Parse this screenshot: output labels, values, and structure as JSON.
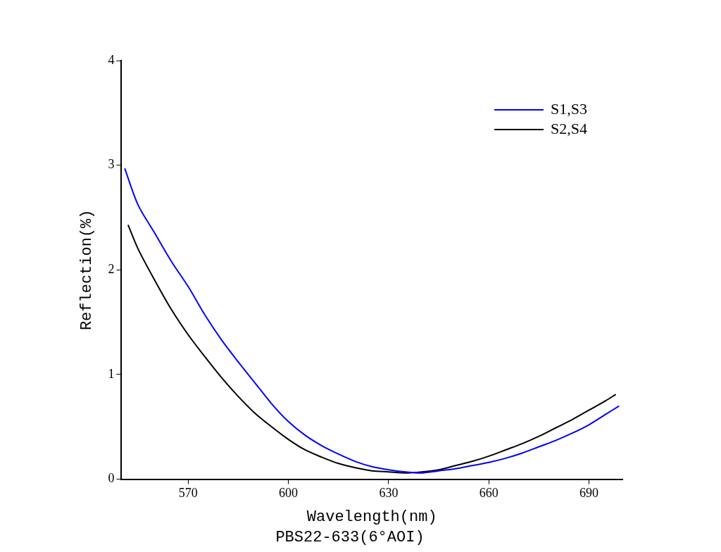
{
  "chart_data": {
    "type": "line",
    "title": "PBS22-633(6°AOI)",
    "x_label": "Wavelength(nm)",
    "y_label": "Reflection(%)",
    "xlim": [
      550,
      700
    ],
    "xticks": [
      570,
      600,
      630,
      660,
      690
    ],
    "ylim": [
      0,
      4
    ],
    "yticks": [
      0,
      1,
      2,
      3,
      4
    ],
    "grid": false,
    "legend": "upper right",
    "series": [
      {
        "name": "S1,S3",
        "color": "#0000ff",
        "x": [
          551,
          555,
          560,
          565,
          570,
          575,
          580,
          585,
          590,
          595,
          600,
          605,
          610,
          615,
          620,
          625,
          630,
          635,
          640,
          645,
          650,
          655,
          660,
          665,
          670,
          675,
          680,
          685,
          690,
          695,
          699
        ],
        "values": [
          2.97,
          2.62,
          2.35,
          2.08,
          1.84,
          1.57,
          1.33,
          1.12,
          0.92,
          0.72,
          0.55,
          0.42,
          0.32,
          0.24,
          0.17,
          0.12,
          0.09,
          0.07,
          0.06,
          0.08,
          0.1,
          0.13,
          0.16,
          0.2,
          0.25,
          0.31,
          0.37,
          0.44,
          0.52,
          0.62,
          0.7
        ]
      },
      {
        "name": "S2,S4",
        "color": "#000000",
        "x": [
          552,
          555,
          560,
          565,
          570,
          575,
          580,
          585,
          590,
          595,
          600,
          605,
          610,
          615,
          620,
          625,
          630,
          635,
          640,
          645,
          650,
          655,
          660,
          665,
          670,
          675,
          680,
          685,
          690,
          695,
          698
        ],
        "values": [
          2.43,
          2.2,
          1.9,
          1.62,
          1.38,
          1.17,
          0.97,
          0.79,
          0.63,
          0.5,
          0.38,
          0.28,
          0.21,
          0.15,
          0.11,
          0.08,
          0.07,
          0.06,
          0.07,
          0.09,
          0.13,
          0.17,
          0.22,
          0.28,
          0.34,
          0.41,
          0.49,
          0.57,
          0.66,
          0.75,
          0.81
        ]
      }
    ]
  }
}
